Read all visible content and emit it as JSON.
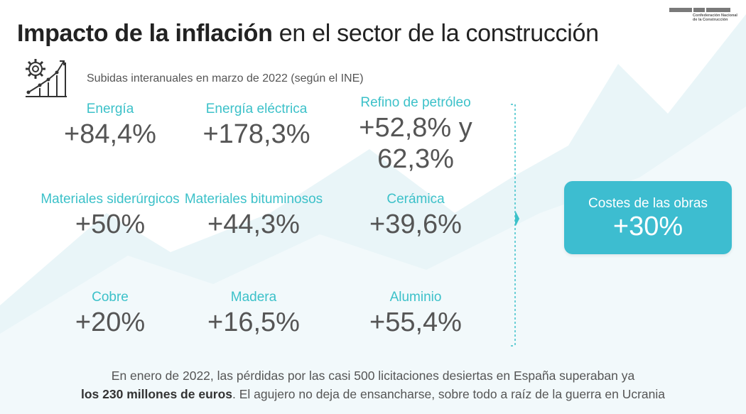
{
  "header": {
    "title_bold": "Impacto de la inflación",
    "title_rest": " en el sector de la construcción",
    "logo_line1": "Confederación Nacional",
    "logo_line2": "de la Construcción"
  },
  "subtitle": "Subidas interanuales en marzo de 2022 (según el INE)",
  "items": [
    {
      "label": "Energía",
      "value": "+84,4%"
    },
    {
      "label": "Energía eléctrica",
      "value": "+178,3%"
    },
    {
      "label": "Refino de petróleo",
      "value": "+52,8% y 62,3%"
    },
    {
      "label": "Materiales siderúrgicos",
      "value": "+50%"
    },
    {
      "label": "Materiales bituminosos",
      "value": "+44,3%"
    },
    {
      "label": "Cerámica",
      "value": "+39,6%"
    },
    {
      "label": "Cobre",
      "value": "+20%"
    },
    {
      "label": "Madera",
      "value": "+16,5%"
    },
    {
      "label": "Aluminio",
      "value": "+55,4%"
    }
  ],
  "result": {
    "label": "Costes de las obras",
    "value": "+30%"
  },
  "footer": {
    "line1": "En enero de 2022, las pérdidas por las casi 500 licitaciones desiertas en España superaban ya",
    "line2_bold": "los 230 millones de euros",
    "line2_rest": ". El agujero no deja de ensancharse, sobre todo a raíz de la guerra en Ucrania"
  },
  "colors": {
    "accent": "#3cc1c9",
    "box": "#3dbdd0",
    "bg_shape": "#eaf6f9"
  }
}
